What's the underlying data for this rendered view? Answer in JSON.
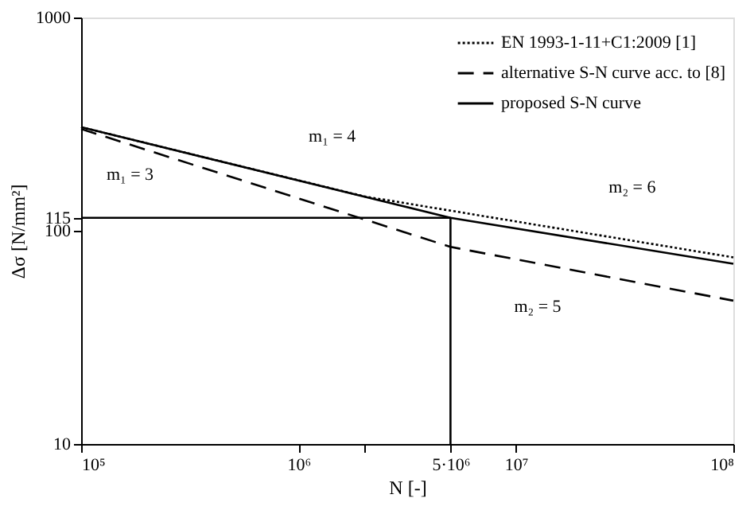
{
  "chart_data": {
    "type": "line",
    "xlabel": "N [-]",
    "ylabel": "Δσ [N/mm²]",
    "log": "xy",
    "xlim": [
      100000,
      100000000
    ],
    "ylim": [
      10,
      1000
    ],
    "xticks": [
      {
        "value": 100000,
        "label": "10⁵"
      },
      {
        "value": 1000000,
        "label": "10⁶"
      },
      {
        "value": 2000000,
        "label": null
      },
      {
        "value": 5000000,
        "label": "5·10⁶"
      },
      {
        "value": 10000000,
        "label": "10⁷"
      },
      {
        "value": 100000000,
        "label": "10⁸"
      }
    ],
    "yticks": [
      10,
      100,
      115,
      1000
    ],
    "grid": false,
    "legend": "top right",
    "marker": "none",
    "series": [
      {
        "name": "EN 1993-1-11+C1:2009 [1]",
        "color": "#000000",
        "line_style": "dotted",
        "x": [
          100000,
          2000000,
          100000000
        ],
        "values": [
          306,
          145,
          75
        ]
      },
      {
        "name": "alternative S-N curve acc. to [8]",
        "color": "#000000",
        "line_style": "dashed",
        "x": [
          100000,
          5000000,
          100000000
        ],
        "values": [
          300,
          84,
          47
        ]
      },
      {
        "name": "proposed S-N curve",
        "color": "#000000",
        "line_style": "solid",
        "x": [
          100000,
          5000000,
          100000000
        ],
        "values": [
          306,
          115,
          70
        ]
      },
      {
        "color": "#000000",
        "line_style": "solid",
        "x": [
          100000,
          5000000,
          5000000
        ],
        "values": [
          115,
          115,
          10
        ]
      }
    ],
    "annotations": [
      "m₁ = 4",
      "m₁ = 3",
      "m₂ = 6",
      "m₂ = 5"
    ]
  }
}
